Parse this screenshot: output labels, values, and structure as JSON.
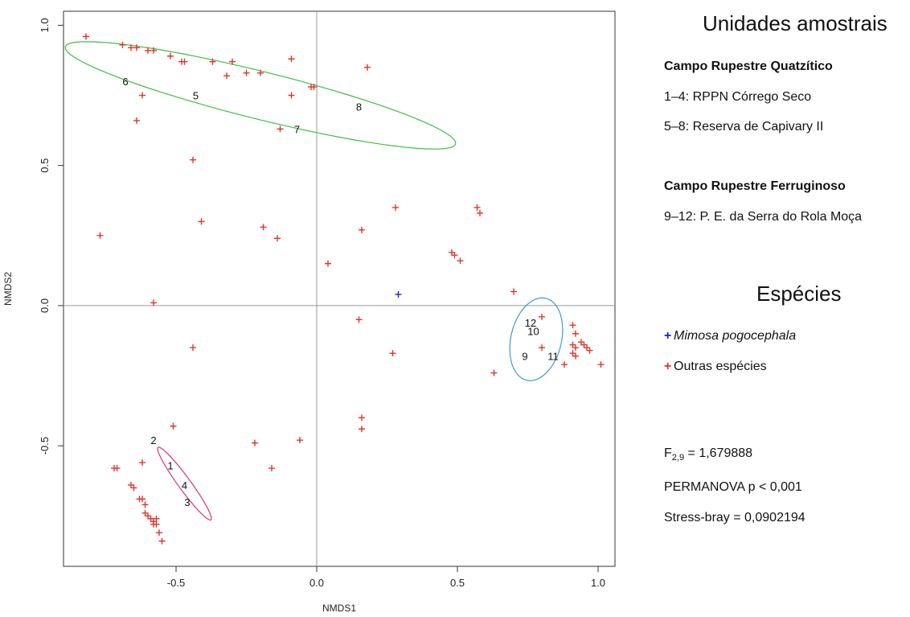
{
  "chart_data": {
    "type": "scatter",
    "xlabel": "NMDS1",
    "ylabel": "NMDS2",
    "xlim": [
      -0.9,
      1.06
    ],
    "ylim": [
      -0.93,
      1.05
    ],
    "xticks": [
      "-0.5",
      "0.0",
      "0.5",
      "1.0"
    ],
    "yticks": [
      "-0.5",
      "0.0",
      "0.5",
      "1.0"
    ],
    "reference_lines": {
      "x": 0,
      "y": 0
    },
    "series": [
      {
        "name": "Mimosa pogocephala",
        "marker": "+",
        "color": "#1f1fcc",
        "points": [
          [
            0.29,
            0.04
          ]
        ]
      },
      {
        "name": "Outras espécies",
        "marker": "+",
        "color": "#e0352b",
        "points": [
          [
            -0.82,
            0.96
          ],
          [
            -0.69,
            0.93
          ],
          [
            -0.66,
            0.92
          ],
          [
            -0.64,
            0.92
          ],
          [
            -0.6,
            0.91
          ],
          [
            -0.58,
            0.91
          ],
          [
            -0.52,
            0.89
          ],
          [
            -0.48,
            0.87
          ],
          [
            -0.47,
            0.87
          ],
          [
            -0.37,
            0.87
          ],
          [
            -0.3,
            0.87
          ],
          [
            -0.09,
            0.88
          ],
          [
            0.18,
            0.85
          ],
          [
            -0.25,
            0.83
          ],
          [
            -0.2,
            0.83
          ],
          [
            -0.32,
            0.82
          ],
          [
            -0.01,
            0.78
          ],
          [
            -0.02,
            0.78
          ],
          [
            -0.09,
            0.75
          ],
          [
            -0.62,
            0.75
          ],
          [
            -0.64,
            0.66
          ],
          [
            -0.13,
            0.63
          ],
          [
            -0.44,
            0.52
          ],
          [
            -0.77,
            0.25
          ],
          [
            -0.41,
            0.3
          ],
          [
            -0.19,
            0.28
          ],
          [
            -0.14,
            0.24
          ],
          [
            0.04,
            0.15
          ],
          [
            0.28,
            0.35
          ],
          [
            0.16,
            0.27
          ],
          [
            0.48,
            0.19
          ],
          [
            0.49,
            0.18
          ],
          [
            0.51,
            0.16
          ],
          [
            0.57,
            0.35
          ],
          [
            0.58,
            0.33
          ],
          [
            -0.58,
            0.01
          ],
          [
            0.7,
            0.05
          ],
          [
            0.15,
            -0.05
          ],
          [
            -0.44,
            -0.15
          ],
          [
            0.27,
            -0.17
          ],
          [
            0.63,
            -0.24
          ],
          [
            0.8,
            -0.04
          ],
          [
            0.8,
            -0.15
          ],
          [
            0.88,
            -0.21
          ],
          [
            0.91,
            -0.07
          ],
          [
            0.92,
            -0.1
          ],
          [
            0.91,
            -0.14
          ],
          [
            0.92,
            -0.15
          ],
          [
            0.91,
            -0.17
          ],
          [
            0.94,
            -0.13
          ],
          [
            0.95,
            -0.14
          ],
          [
            0.96,
            -0.15
          ],
          [
            0.97,
            -0.16
          ],
          [
            0.92,
            -0.18
          ],
          [
            1.01,
            -0.21
          ],
          [
            0.16,
            -0.4
          ],
          [
            0.16,
            -0.44
          ],
          [
            -0.51,
            -0.43
          ],
          [
            -0.22,
            -0.49
          ],
          [
            -0.06,
            -0.48
          ],
          [
            -0.16,
            -0.58
          ],
          [
            -0.62,
            -0.56
          ],
          [
            -0.71,
            -0.58
          ],
          [
            -0.72,
            -0.58
          ],
          [
            -0.66,
            -0.64
          ],
          [
            -0.65,
            -0.65
          ],
          [
            -0.63,
            -0.69
          ],
          [
            -0.62,
            -0.69
          ],
          [
            -0.61,
            -0.71
          ],
          [
            -0.61,
            -0.74
          ],
          [
            -0.6,
            -0.75
          ],
          [
            -0.59,
            -0.76
          ],
          [
            -0.58,
            -0.77
          ],
          [
            -0.57,
            -0.76
          ],
          [
            -0.57,
            -0.78
          ],
          [
            -0.58,
            -0.78
          ],
          [
            -0.56,
            -0.81
          ],
          [
            -0.55,
            -0.84
          ]
        ]
      }
    ],
    "ellipses": [
      {
        "group": "Campo Rupestre Quatzítico",
        "color": "#3fbf3f",
        "center": [
          -0.2,
          0.75
        ],
        "semi_axes": [
          0.715,
          0.085
        ],
        "angle_deg": -14
      },
      {
        "group": "Campo Rupestre Ferruginoso",
        "color": "#3a9bd8",
        "center": [
          0.78,
          -0.12
        ],
        "semi_axes": [
          0.09,
          0.15
        ],
        "angle_deg": -13
      },
      {
        "group": "Campo Rupestre Quatzítico",
        "color": "#d9356e",
        "center": [
          -0.47,
          -0.635
        ],
        "semi_axes": [
          0.16,
          0.022
        ],
        "angle_deg": -54
      }
    ],
    "site_labels": [
      {
        "label": "1",
        "x": -0.52,
        "y": -0.57
      },
      {
        "label": "2",
        "x": -0.58,
        "y": -0.48
      },
      {
        "label": "3",
        "x": -0.46,
        "y": -0.7
      },
      {
        "label": "4",
        "x": -0.47,
        "y": -0.64
      },
      {
        "label": "5",
        "x": -0.43,
        "y": 0.75
      },
      {
        "label": "6",
        "x": -0.68,
        "y": 0.8
      },
      {
        "label": "7",
        "x": -0.07,
        "y": 0.63
      },
      {
        "label": "8",
        "x": 0.15,
        "y": 0.71
      },
      {
        "label": "9",
        "x": 0.74,
        "y": -0.18
      },
      {
        "label": "10",
        "x": 0.77,
        "y": -0.09
      },
      {
        "label": "11",
        "x": 0.84,
        "y": -0.18
      },
      {
        "label": "12",
        "x": 0.76,
        "y": -0.06
      }
    ]
  },
  "legend": {
    "units_title": "Unidades amostrais",
    "group1_title": "Campo Rupestre Quatzítico",
    "group1_line1": "1–4: RPPN Córrego Seco",
    "group1_line2": "5–8: Reserva de Capivary II",
    "group2_title": "Campo Rupestre Ferruginoso",
    "group2_line1": "9–12: P. E. da Serra do Rola Moça",
    "species_title": "Espécies",
    "species_marker": "+",
    "species1": "Mimosa pogocephala",
    "species1_color": "#1f1fcc",
    "species2": "Outras espécies",
    "species2_color": "#e0352b"
  },
  "stats": {
    "f_symbol": "F",
    "f_subscript": "2,9",
    "f_value": " = 1,679888",
    "permanova": "PERMANOVA p < 0,001",
    "stress": "Stress-bray = 0,0902194"
  }
}
